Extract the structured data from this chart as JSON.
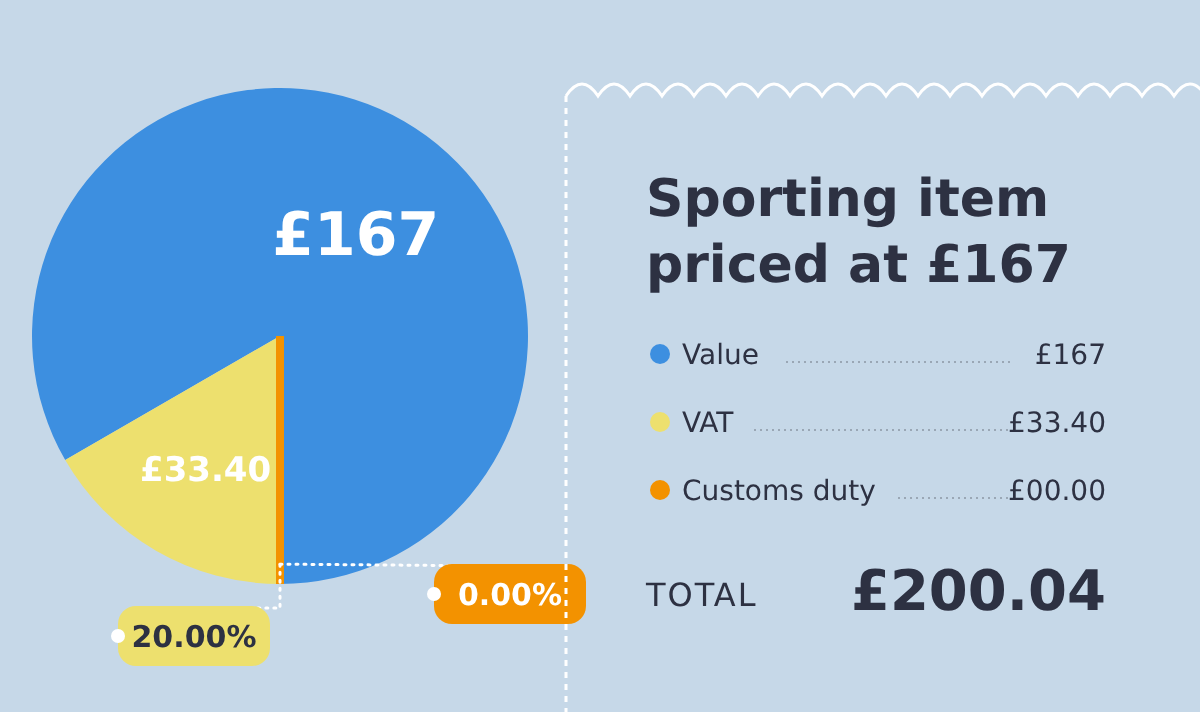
{
  "chart_data": {
    "type": "pie",
    "title": "Sporting item priced at £167",
    "categories": [
      "Value",
      "VAT",
      "Customs duty"
    ],
    "values": [
      167,
      33.4,
      0
    ],
    "colors": [
      "#3d8fe0",
      "#ede06e",
      "#f39200"
    ],
    "value_labels": [
      "£167",
      "£33.40",
      "£00.00"
    ],
    "legend": "right",
    "annotations": [
      "20.00%",
      "0.00%",
      "TOTAL",
      "£200.04"
    ]
  }
}
